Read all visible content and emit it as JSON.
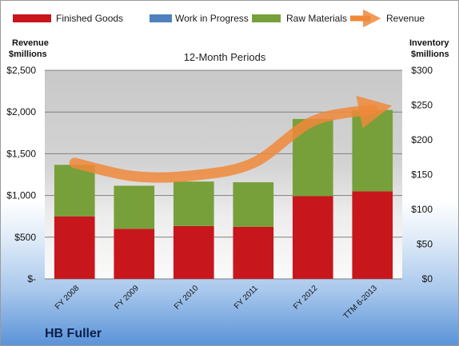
{
  "company": "HB Fuller",
  "chart_data": {
    "type": "bar",
    "title": "",
    "subtitle": "12-Month Periods",
    "categories": [
      "FY 2008",
      "FY 2009",
      "FY 2010",
      "FY 2011",
      "FY 2012",
      "TTM 6-2013"
    ],
    "left_axis": {
      "label_line1": "Revenue",
      "label_line2": "$millions",
      "ylim": [
        0,
        2500
      ],
      "ticks": [
        "$-",
        "$500",
        "$1,000",
        "$1,500",
        "$2,000",
        "$2,500"
      ]
    },
    "right_axis": {
      "label_line1": "Inventory",
      "label_line2": "$millions",
      "ylim": [
        0,
        300
      ],
      "ticks": [
        "$0",
        "$50",
        "$100",
        "$150",
        "$200",
        "$250",
        "$300"
      ]
    },
    "series": [
      {
        "name": "Finished Goods",
        "axis": "right",
        "color": "#c8161d",
        "values": [
          90,
          72,
          76,
          75,
          119,
          126
        ]
      },
      {
        "name": "Work in Progress",
        "axis": "right",
        "color": "#4f81bd",
        "values": [
          0,
          0,
          0,
          0,
          0,
          0
        ]
      },
      {
        "name": "Raw Materials",
        "axis": "right",
        "color": "#77a03a",
        "values": [
          74,
          62,
          64,
          64,
          111,
          117
        ]
      },
      {
        "name": "Revenue",
        "axis": "left",
        "type": "line",
        "color": "#f0883a",
        "values": [
          1390,
          1230,
          1240,
          1390,
          1890,
          2030
        ]
      }
    ],
    "grid": true,
    "legend_position": "top"
  }
}
